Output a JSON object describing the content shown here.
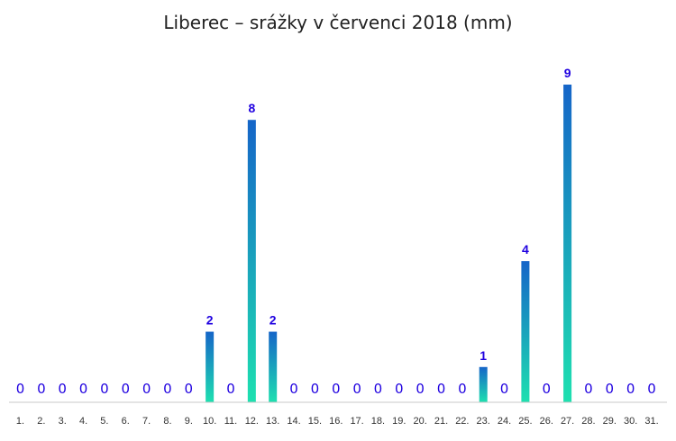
{
  "chart_data": {
    "type": "bar",
    "title": "Liberec – srážky v červenci 2018 (mm)",
    "xlabel": "",
    "ylabel": "",
    "categories": [
      "1.",
      "2.",
      "3.",
      "4.",
      "5.",
      "6.",
      "7.",
      "8.",
      "9.",
      "10.",
      "11.",
      "12.",
      "13.",
      "14.",
      "15.",
      "16.",
      "17.",
      "18.",
      "19.",
      "20.",
      "21.",
      "22.",
      "23.",
      "24.",
      "25.",
      "26.",
      "27.",
      "28.",
      "29.",
      "30.",
      "31."
    ],
    "values": [
      0,
      0,
      0,
      0,
      0,
      0,
      0,
      0,
      0,
      2,
      0,
      8,
      2,
      0,
      0,
      0,
      0,
      0,
      0,
      0,
      0,
      0,
      1,
      0,
      4,
      0,
      9,
      0,
      0,
      0,
      0
    ],
    "ylim": [
      0,
      9
    ],
    "grid": false,
    "legend": "none",
    "colors": {
      "bar_top": "#1565c8",
      "bar_bottom": "#1ee0b0",
      "label": "#1f00e0",
      "axis": "#c8c8c8",
      "title": "#222222"
    }
  }
}
